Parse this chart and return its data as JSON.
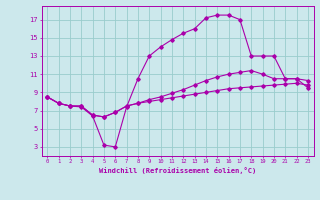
{
  "xlabel": "Windchill (Refroidissement éolien,°C)",
  "background_color": "#cce8ec",
  "grid_color": "#99cccc",
  "line_color": "#aa00aa",
  "xlim": [
    -0.5,
    23.5
  ],
  "ylim": [
    2,
    18.5
  ],
  "xticks": [
    0,
    1,
    2,
    3,
    4,
    5,
    6,
    7,
    8,
    9,
    10,
    11,
    12,
    13,
    14,
    15,
    16,
    17,
    18,
    19,
    20,
    21,
    22,
    23
  ],
  "yticks": [
    3,
    5,
    7,
    9,
    11,
    13,
    15,
    17
  ],
  "series": [
    {
      "x": [
        0,
        1,
        2,
        3,
        4,
        5,
        6,
        7,
        8,
        9,
        10,
        11,
        12,
        13,
        14,
        15,
        16,
        17,
        18,
        19,
        20,
        21,
        22,
        23
      ],
      "y": [
        8.5,
        7.8,
        7.5,
        7.5,
        6.5,
        6.3,
        6.8,
        7.5,
        7.8,
        8.0,
        8.2,
        8.4,
        8.6,
        8.8,
        9.0,
        9.2,
        9.4,
        9.5,
        9.6,
        9.7,
        9.8,
        9.9,
        10.0,
        9.8
      ]
    },
    {
      "x": [
        0,
        1,
        2,
        3,
        4,
        5,
        6,
        7,
        8,
        9,
        10,
        11,
        12,
        13,
        14,
        15,
        16,
        17,
        18,
        19,
        20,
        21,
        22,
        23
      ],
      "y": [
        8.5,
        7.8,
        7.5,
        7.5,
        6.5,
        6.3,
        6.8,
        7.5,
        7.8,
        8.2,
        8.5,
        8.9,
        9.3,
        9.8,
        10.3,
        10.7,
        11.0,
        11.2,
        11.4,
        11.0,
        10.5,
        10.5,
        10.5,
        10.3
      ]
    },
    {
      "x": [
        0,
        1,
        2,
        3,
        4,
        5,
        6,
        7,
        8,
        9,
        10,
        11,
        12,
        13,
        14,
        15,
        16,
        17,
        18,
        19,
        20,
        21,
        22,
        23
      ],
      "y": [
        8.5,
        7.8,
        7.5,
        7.4,
        6.4,
        3.2,
        3.0,
        7.4,
        10.5,
        13.0,
        14.0,
        14.8,
        15.5,
        16.0,
        17.2,
        17.5,
        17.5,
        17.0,
        13.0,
        13.0,
        13.0,
        10.5,
        10.5,
        9.5
      ]
    }
  ]
}
